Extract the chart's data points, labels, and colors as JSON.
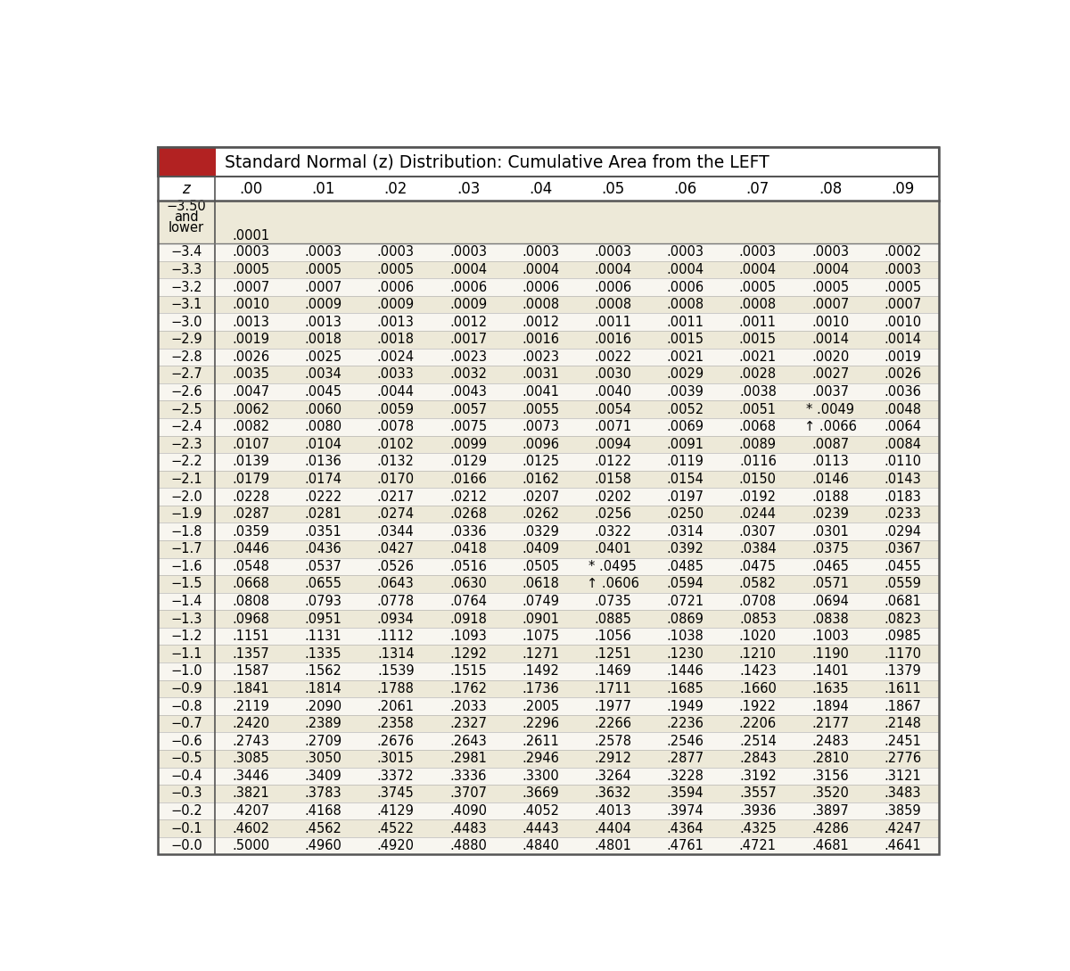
{
  "title": "Standard Normal (z) Distribution: Cumulative Area from the LEFT",
  "col_headers": [
    "z",
    ".00",
    ".01",
    ".02",
    ".03",
    ".04",
    ".05",
    ".06",
    ".07",
    ".08",
    ".09"
  ],
  "rows": [
    [
      "−3.50\nand\nlower",
      ".0001",
      "",
      "",
      "",
      "",
      "",
      "",
      "",
      "",
      ""
    ],
    [
      "−3.4",
      ".0003",
      ".0003",
      ".0003",
      ".0003",
      ".0003",
      ".0003",
      ".0003",
      ".0003",
      ".0003",
      ".0002"
    ],
    [
      "−3.3",
      ".0005",
      ".0005",
      ".0005",
      ".0004",
      ".0004",
      ".0004",
      ".0004",
      ".0004",
      ".0004",
      ".0003"
    ],
    [
      "−3.2",
      ".0007",
      ".0007",
      ".0006",
      ".0006",
      ".0006",
      ".0006",
      ".0006",
      ".0005",
      ".0005",
      ".0005"
    ],
    [
      "−3.1",
      ".0010",
      ".0009",
      ".0009",
      ".0009",
      ".0008",
      ".0008",
      ".0008",
      ".0008",
      ".0007",
      ".0007"
    ],
    [
      "−3.0",
      ".0013",
      ".0013",
      ".0013",
      ".0012",
      ".0012",
      ".0011",
      ".0011",
      ".0011",
      ".0010",
      ".0010"
    ],
    [
      "−2.9",
      ".0019",
      ".0018",
      ".0018",
      ".0017",
      ".0016",
      ".0016",
      ".0015",
      ".0015",
      ".0014",
      ".0014"
    ],
    [
      "−2.8",
      ".0026",
      ".0025",
      ".0024",
      ".0023",
      ".0023",
      ".0022",
      ".0021",
      ".0021",
      ".0020",
      ".0019"
    ],
    [
      "−2.7",
      ".0035",
      ".0034",
      ".0033",
      ".0032",
      ".0031",
      ".0030",
      ".0029",
      ".0028",
      ".0027",
      ".0026"
    ],
    [
      "−2.6",
      ".0047",
      ".0045",
      ".0044",
      ".0043",
      ".0041",
      ".0040",
      ".0039",
      ".0038",
      ".0037",
      ".0036"
    ],
    [
      "−2.5",
      ".0062",
      ".0060",
      ".0059",
      ".0057",
      ".0055",
      ".0054",
      ".0052",
      ".0051",
      "* .0049",
      ".0048"
    ],
    [
      "−2.4",
      ".0082",
      ".0080",
      ".0078",
      ".0075",
      ".0073",
      ".0071",
      ".0069",
      ".0068",
      "↑ .0066",
      ".0064"
    ],
    [
      "−2.3",
      ".0107",
      ".0104",
      ".0102",
      ".0099",
      ".0096",
      ".0094",
      ".0091",
      ".0089",
      ".0087",
      ".0084"
    ],
    [
      "−2.2",
      ".0139",
      ".0136",
      ".0132",
      ".0129",
      ".0125",
      ".0122",
      ".0119",
      ".0116",
      ".0113",
      ".0110"
    ],
    [
      "−2.1",
      ".0179",
      ".0174",
      ".0170",
      ".0166",
      ".0162",
      ".0158",
      ".0154",
      ".0150",
      ".0146",
      ".0143"
    ],
    [
      "−2.0",
      ".0228",
      ".0222",
      ".0217",
      ".0212",
      ".0207",
      ".0202",
      ".0197",
      ".0192",
      ".0188",
      ".0183"
    ],
    [
      "−1.9",
      ".0287",
      ".0281",
      ".0274",
      ".0268",
      ".0262",
      ".0256",
      ".0250",
      ".0244",
      ".0239",
      ".0233"
    ],
    [
      "−1.8",
      ".0359",
      ".0351",
      ".0344",
      ".0336",
      ".0329",
      ".0322",
      ".0314",
      ".0307",
      ".0301",
      ".0294"
    ],
    [
      "−1.7",
      ".0446",
      ".0436",
      ".0427",
      ".0418",
      ".0409",
      ".0401",
      ".0392",
      ".0384",
      ".0375",
      ".0367"
    ],
    [
      "−1.6",
      ".0548",
      ".0537",
      ".0526",
      ".0516",
      ".0505",
      "* .0495",
      ".0485",
      ".0475",
      ".0465",
      ".0455"
    ],
    [
      "−1.5",
      ".0668",
      ".0655",
      ".0643",
      ".0630",
      ".0618",
      "↑ .0606",
      ".0594",
      ".0582",
      ".0571",
      ".0559"
    ],
    [
      "−1.4",
      ".0808",
      ".0793",
      ".0778",
      ".0764",
      ".0749",
      ".0735",
      ".0721",
      ".0708",
      ".0694",
      ".0681"
    ],
    [
      "−1.3",
      ".0968",
      ".0951",
      ".0934",
      ".0918",
      ".0901",
      ".0885",
      ".0869",
      ".0853",
      ".0838",
      ".0823"
    ],
    [
      "−1.2",
      ".1151",
      ".1131",
      ".1112",
      ".1093",
      ".1075",
      ".1056",
      ".1038",
      ".1020",
      ".1003",
      ".0985"
    ],
    [
      "−1.1",
      ".1357",
      ".1335",
      ".1314",
      ".1292",
      ".1271",
      ".1251",
      ".1230",
      ".1210",
      ".1190",
      ".1170"
    ],
    [
      "−1.0",
      ".1587",
      ".1562",
      ".1539",
      ".1515",
      ".1492",
      ".1469",
      ".1446",
      ".1423",
      ".1401",
      ".1379"
    ],
    [
      "−0.9",
      ".1841",
      ".1814",
      ".1788",
      ".1762",
      ".1736",
      ".1711",
      ".1685",
      ".1660",
      ".1635",
      ".1611"
    ],
    [
      "−0.8",
      ".2119",
      ".2090",
      ".2061",
      ".2033",
      ".2005",
      ".1977",
      ".1949",
      ".1922",
      ".1894",
      ".1867"
    ],
    [
      "−0.7",
      ".2420",
      ".2389",
      ".2358",
      ".2327",
      ".2296",
      ".2266",
      ".2236",
      ".2206",
      ".2177",
      ".2148"
    ],
    [
      "−0.6",
      ".2743",
      ".2709",
      ".2676",
      ".2643",
      ".2611",
      ".2578",
      ".2546",
      ".2514",
      ".2483",
      ".2451"
    ],
    [
      "−0.5",
      ".3085",
      ".3050",
      ".3015",
      ".2981",
      ".2946",
      ".2912",
      ".2877",
      ".2843",
      ".2810",
      ".2776"
    ],
    [
      "−0.4",
      ".3446",
      ".3409",
      ".3372",
      ".3336",
      ".3300",
      ".3264",
      ".3228",
      ".3192",
      ".3156",
      ".3121"
    ],
    [
      "−0.3",
      ".3821",
      ".3783",
      ".3745",
      ".3707",
      ".3669",
      ".3632",
      ".3594",
      ".3557",
      ".3520",
      ".3483"
    ],
    [
      "−0.2",
      ".4207",
      ".4168",
      ".4129",
      ".4090",
      ".4052",
      ".4013",
      ".3974",
      ".3936",
      ".3897",
      ".3859"
    ],
    [
      "−0.1",
      ".4602",
      ".4562",
      ".4522",
      ".4483",
      ".4443",
      ".4404",
      ".4364",
      ".4325",
      ".4286",
      ".4247"
    ],
    [
      "−0.0",
      ".5000",
      ".4960",
      ".4920",
      ".4880",
      ".4840",
      ".4801",
      ".4761",
      ".4721",
      ".4681",
      ".4641"
    ]
  ],
  "header_bg": "#b22222",
  "odd_row_bg": "#ede9d8",
  "even_row_bg": "#f8f6f0",
  "border_color": "#555555",
  "text_color": "#1a1a1a"
}
